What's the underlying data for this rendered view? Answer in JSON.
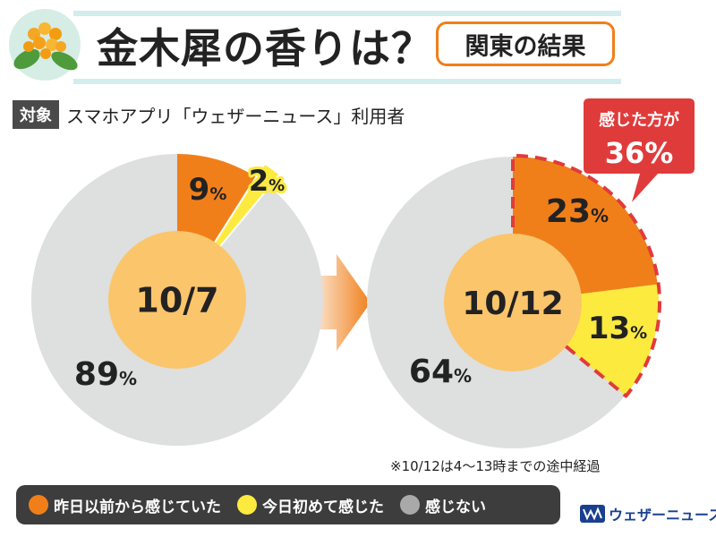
{
  "header": {
    "title": "金木犀の香りは？",
    "region_badge": "関東の結果"
  },
  "target": {
    "tag": "対象",
    "text": "スマホアプリ「ウェザーニュース」利用者"
  },
  "callout": {
    "label": "感じた方が",
    "value": "36%"
  },
  "note": "※10/12は4〜13時までの途中経過",
  "legend": [
    {
      "label": "昨日以前から感じていた",
      "color": "#f07f1a"
    },
    {
      "label": "今日初めて感じた",
      "color": "#fcea3f"
    },
    {
      "label": "感じない",
      "color": "#a9a9a9"
    }
  ],
  "brand": {
    "name": "ウェザーニュース"
  },
  "colors": {
    "orange": "#f07f1a",
    "yellow": "#fcea3f",
    "gray": "#dedfdf",
    "center": "#fbc56b",
    "red": "#e03b3b",
    "band": "#d3ecec"
  },
  "chart_data": [
    {
      "type": "pie",
      "center_label": "10/7",
      "series": [
        {
          "name": "昨日以前から感じていた",
          "value": 9,
          "label": "9"
        },
        {
          "name": "今日初めて感じた",
          "value": 2,
          "label": "2"
        },
        {
          "name": "感じない",
          "value": 89,
          "label": "89"
        }
      ],
      "unit": "%"
    },
    {
      "type": "pie",
      "center_label": "10/12",
      "series": [
        {
          "name": "昨日以前から感じていた",
          "value": 23,
          "label": "23"
        },
        {
          "name": "今日初めて感じた",
          "value": 13,
          "label": "13"
        },
        {
          "name": "感じない",
          "value": 64,
          "label": "64"
        }
      ],
      "unit": "%"
    }
  ]
}
